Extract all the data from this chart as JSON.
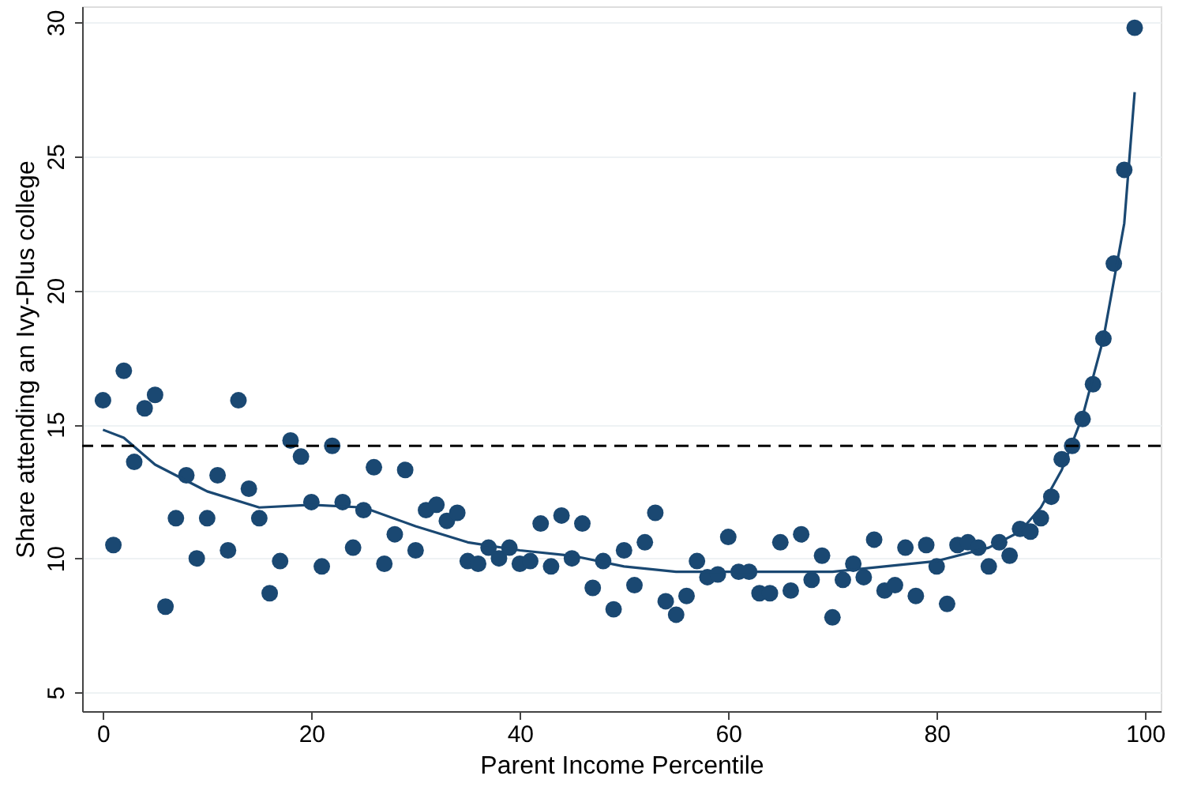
{
  "chart_data": {
    "type": "scatter",
    "xlabel": "Parent Income Percentile",
    "ylabel": "Share attending an Ivy-Plus college",
    "xlim": [
      -2,
      101.5
    ],
    "ylim": [
      4.3,
      30.6
    ],
    "xticks": [
      0,
      20,
      40,
      60,
      80,
      100
    ],
    "yticks": [
      5,
      10,
      15,
      20,
      25,
      30
    ],
    "grid": "y",
    "marker": "circle",
    "series": [
      {
        "color": "#1a4872",
        "x": [
          0,
          1,
          2,
          3,
          4,
          5,
          6,
          7,
          8,
          9,
          10,
          11,
          12,
          13,
          14,
          15,
          16,
          17,
          18,
          19,
          20,
          21,
          22,
          23,
          24,
          25,
          26,
          27,
          28,
          29,
          30,
          31,
          32,
          33,
          34,
          35,
          36,
          37,
          38,
          39,
          40,
          41,
          42,
          43,
          44,
          45,
          46,
          47,
          48,
          49,
          50,
          51,
          52,
          53,
          54,
          55,
          56,
          57,
          58,
          59,
          60,
          61,
          62,
          63,
          64,
          65,
          66,
          67,
          68,
          69,
          70,
          71,
          72,
          73,
          74,
          75,
          76,
          77,
          78,
          79,
          80,
          81,
          82,
          83,
          84,
          85,
          86,
          87,
          88,
          89,
          90,
          91,
          92,
          93,
          94,
          95,
          96,
          97,
          98,
          99
        ],
        "values": [
          15.9,
          10.5,
          17.0,
          13.6,
          15.6,
          16.1,
          8.2,
          11.5,
          13.1,
          10.0,
          11.5,
          13.1,
          10.3,
          15.9,
          12.6,
          11.5,
          8.7,
          9.9,
          14.4,
          13.8,
          12.1,
          9.7,
          14.2,
          12.1,
          10.4,
          11.8,
          13.4,
          9.8,
          10.9,
          13.3,
          10.3,
          11.8,
          12.0,
          11.4,
          11.7,
          9.9,
          9.8,
          10.4,
          10.0,
          10.4,
          9.8,
          9.9,
          11.3,
          9.7,
          11.6,
          10.0,
          11.3,
          8.9,
          9.9,
          8.1,
          10.3,
          9.0,
          10.6,
          11.7,
          8.4,
          7.9,
          8.6,
          9.9,
          9.3,
          9.4,
          10.8,
          9.5,
          9.5,
          8.7,
          8.7,
          10.6,
          8.8,
          10.9,
          9.2,
          10.1,
          7.8,
          9.2,
          9.8,
          9.3,
          10.7,
          8.8,
          9.0,
          10.4,
          8.6,
          10.5,
          9.7,
          8.3,
          10.5,
          10.6,
          10.4,
          9.7,
          10.6,
          10.1,
          11.1,
          11.0,
          11.5,
          12.3,
          13.7,
          14.2,
          15.2,
          16.5,
          18.2,
          21.0,
          24.5,
          29.8
        ]
      },
      {
        "type": "line",
        "color": "#1a4872",
        "marker": "none",
        "x": [
          0,
          2,
          5,
          10,
          15,
          20,
          25,
          30,
          35,
          40,
          45,
          50,
          55,
          60,
          65,
          70,
          75,
          80,
          85,
          88,
          90,
          92,
          94,
          96,
          98,
          99
        ],
        "values": [
          14.8,
          14.5,
          13.5,
          12.5,
          11.9,
          12.0,
          11.9,
          11.2,
          10.6,
          10.3,
          10.1,
          9.7,
          9.5,
          9.5,
          9.5,
          9.5,
          9.7,
          9.9,
          10.4,
          11.0,
          11.9,
          13.3,
          15.3,
          18.2,
          22.5,
          27.4
        ]
      }
    ],
    "ref_lines": [
      {
        "axis": "y",
        "value": 14.2,
        "color": "#000000",
        "line_style": "dashed"
      }
    ]
  }
}
